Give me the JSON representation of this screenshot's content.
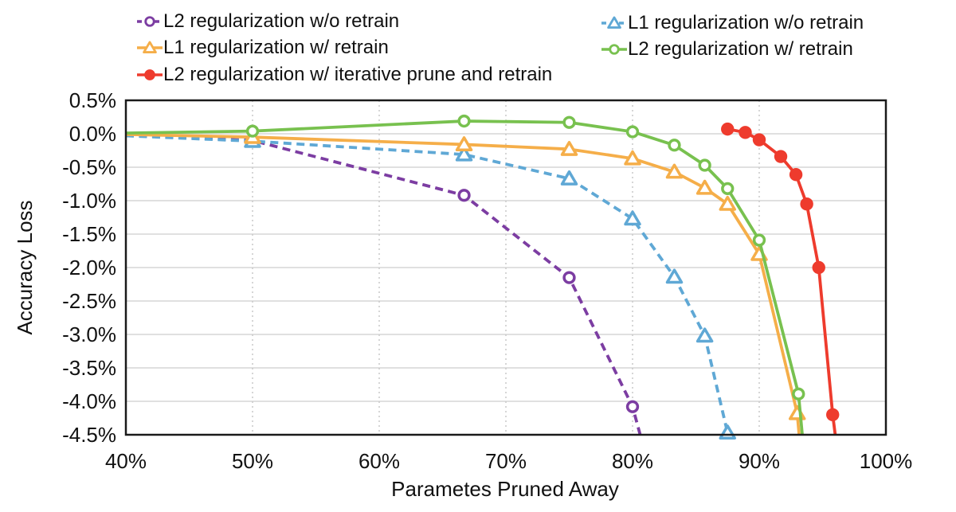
{
  "legend": {
    "columns": [
      {
        "items": [
          {
            "label": "L2 regularization w/o retrain",
            "series_index": 0
          },
          {
            "label": "L1 regularization w/ retrain",
            "series_index": 2
          },
          {
            "label": "L2 regularization w/ iterative prune and retrain",
            "series_index": 4
          }
        ]
      },
      {
        "items": [
          {
            "label": "L1 regularization w/o retrain",
            "series_index": 1
          },
          {
            "label": "L2 regularization w/ retrain",
            "series_index": 3
          }
        ]
      }
    ]
  },
  "chart_data": {
    "type": "line",
    "title": "",
    "xlabel": "Parametes Pruned Away",
    "ylabel": "Accuracy Loss",
    "xlim": [
      40,
      100
    ],
    "ylim": [
      -4.5,
      0.5
    ],
    "grid": {
      "horizontal": "solid",
      "vertical": "dotted"
    },
    "legend_position": "top",
    "x_ticks": [
      {
        "value": 40,
        "label": "40%"
      },
      {
        "value": 50,
        "label": "50%"
      },
      {
        "value": 60,
        "label": "60%"
      },
      {
        "value": 70,
        "label": "70%"
      },
      {
        "value": 80,
        "label": "80%"
      },
      {
        "value": 90,
        "label": "90%"
      },
      {
        "value": 100,
        "label": "100%"
      }
    ],
    "y_ticks": [
      {
        "value": 0.5,
        "label": "0.5%"
      },
      {
        "value": 0.0,
        "label": "0.0%"
      },
      {
        "value": -0.5,
        "label": "-0.5%"
      },
      {
        "value": -1.0,
        "label": "-1.0%"
      },
      {
        "value": -1.5,
        "label": "-1.5%"
      },
      {
        "value": -2.0,
        "label": "-2.0%"
      },
      {
        "value": -2.5,
        "label": "-2.5%"
      },
      {
        "value": -3.0,
        "label": "-3.0%"
      },
      {
        "value": -3.5,
        "label": "-3.5%"
      },
      {
        "value": -4.0,
        "label": "-4.0%"
      },
      {
        "value": -4.5,
        "label": "-4.5%"
      }
    ],
    "colors": {
      "grid_h": "#d5d5d5",
      "grid_v": "#c9c9c9",
      "border": "#1a1a1a",
      "text": "#111111"
    },
    "series": [
      {
        "name": "L2 regularization w/o retrain",
        "slug": "l2-wo-retrain",
        "color": "#7c3da2",
        "line_style": "dashed",
        "marker": "circle-open",
        "points": [
          [
            50,
            -0.1
          ],
          [
            66.7,
            -0.92
          ],
          [
            75,
            -2.15
          ],
          [
            80,
            -4.08
          ]
        ],
        "line_start": [
          40,
          -0.02
        ],
        "line_end": [
          80.6,
          -4.5
        ]
      },
      {
        "name": "L1 regularization w/o retrain",
        "slug": "l1-wo-retrain",
        "color": "#5fa8d5",
        "line_style": "dashed",
        "marker": "triangle-open",
        "points": [
          [
            50,
            -0.11
          ],
          [
            66.7,
            -0.31
          ],
          [
            75,
            -0.67
          ],
          [
            80,
            -1.27
          ],
          [
            83.3,
            -2.14
          ],
          [
            85.7,
            -3.02
          ],
          [
            87.5,
            -4.47
          ]
        ],
        "line_start": [
          40,
          -0.03
        ],
        "line_end": null
      },
      {
        "name": "L1 regularization w/ retrain",
        "slug": "l1-w-retrain",
        "color": "#f5ae49",
        "line_style": "solid",
        "marker": "triangle-open",
        "points": [
          [
            50,
            -0.05
          ],
          [
            66.7,
            -0.16
          ],
          [
            75,
            -0.23
          ],
          [
            80,
            -0.37
          ],
          [
            83.3,
            -0.57
          ],
          [
            85.7,
            -0.81
          ],
          [
            87.5,
            -1.05
          ],
          [
            90,
            -1.8
          ],
          [
            93,
            -4.18
          ]
        ],
        "line_start": [
          40,
          -0.01
        ],
        "line_end": [
          93.15,
          -4.5
        ]
      },
      {
        "name": "L2 regularization w/ retrain",
        "slug": "l2-w-retrain",
        "color": "#78c14f",
        "line_style": "solid",
        "marker": "circle-open",
        "points": [
          [
            50,
            0.04
          ],
          [
            66.7,
            0.19
          ],
          [
            75,
            0.17
          ],
          [
            80,
            0.03
          ],
          [
            83.3,
            -0.17
          ],
          [
            85.7,
            -0.47
          ],
          [
            87.5,
            -0.82
          ],
          [
            90,
            -1.59
          ],
          [
            93.1,
            -3.89
          ]
        ],
        "line_start": [
          40,
          0.01
        ],
        "line_end": [
          93.4,
          -4.5
        ]
      },
      {
        "name": "L2 regularization w/ iterative prune and retrain",
        "slug": "l2-iterative-prune-retrain",
        "color": "#ee3b2d",
        "line_style": "solid",
        "marker": "circle-filled",
        "points": [
          [
            87.5,
            0.07
          ],
          [
            88.9,
            0.02
          ],
          [
            90,
            -0.09
          ],
          [
            91.7,
            -0.34
          ],
          [
            92.9,
            -0.61
          ],
          [
            93.75,
            -1.05
          ],
          [
            94.7,
            -2.0
          ],
          [
            95.8,
            -4.2
          ]
        ],
        "line_start": null,
        "line_end": [
          96.0,
          -4.5
        ]
      }
    ]
  }
}
